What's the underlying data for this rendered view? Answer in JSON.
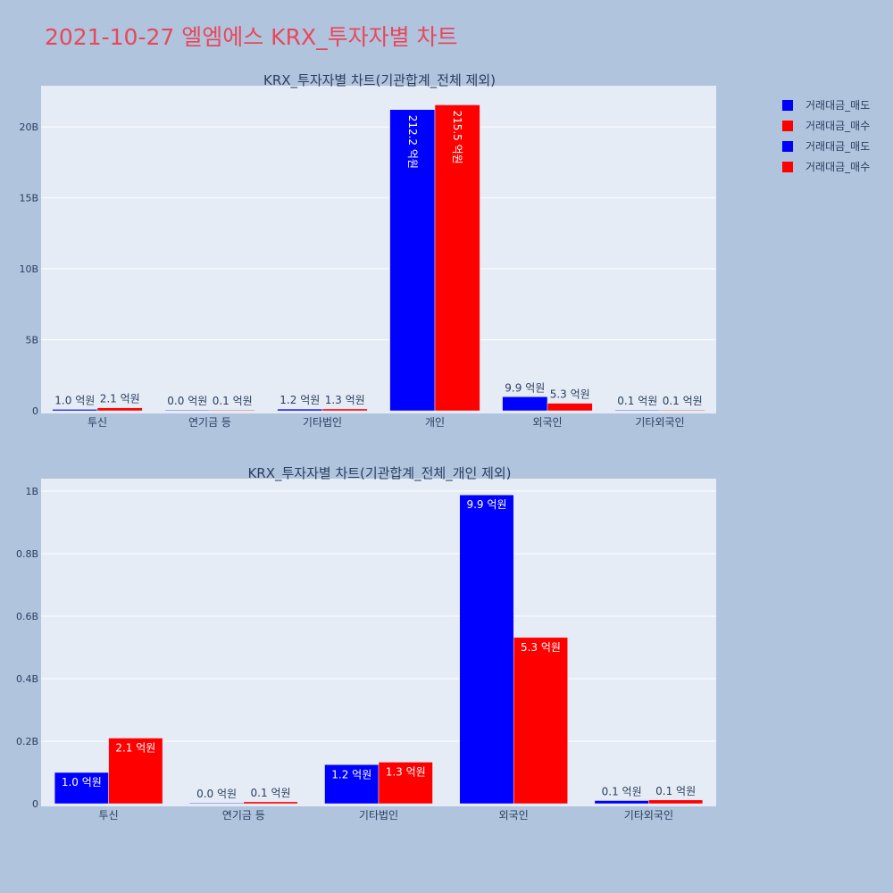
{
  "page": {
    "title": "2021-10-27 엘엠에스 KRX_투자자별 차트"
  },
  "legend": [
    {
      "label": "거래대금_매도",
      "color": "#0000ff"
    },
    {
      "label": "거래대금_매수",
      "color": "#ff0000"
    },
    {
      "label": "거래대금_매도",
      "color": "#0000ff"
    },
    {
      "label": "거래대금_매수",
      "color": "#ff0000"
    }
  ],
  "chart_data": [
    {
      "type": "bar",
      "title": "KRX_투자자별 차트(기관합계_전체 제외)",
      "categories": [
        "투신",
        "연기금 등",
        "기타법인",
        "개인",
        "외국인",
        "기타외국인"
      ],
      "series": [
        {
          "name": "거래대금_매도",
          "color": "#0000ff",
          "values": [
            100000000,
            2000000,
            120000000,
            21220000000,
            990000000,
            10000000
          ],
          "labels": [
            "1.0 억원",
            "0.0 억원",
            "1.2 억원",
            "212.2 억원",
            "9.9 억원",
            "0.1 억원"
          ]
        },
        {
          "name": "거래대금_매수",
          "color": "#ff0000",
          "values": [
            210000000,
            6000000,
            130000000,
            21550000000,
            530000000,
            12000000
          ],
          "labels": [
            "2.1 억원",
            "0.1 억원",
            "1.3 억원",
            "215.5 억원",
            "5.3 억원",
            "0.1 억원"
          ]
        }
      ],
      "ylim": [
        0,
        22900000000
      ],
      "yticks": [
        0,
        5000000000,
        10000000000,
        15000000000,
        20000000000
      ],
      "yticklabels": [
        "0",
        "5B",
        "10B",
        "15B",
        "20B"
      ],
      "grid": true
    },
    {
      "type": "bar",
      "title": "KRX_투자자별 차트(기관합계_전체_개인 제외)",
      "categories": [
        "투신",
        "연기금 등",
        "기타법인",
        "외국인",
        "기타외국인"
      ],
      "series": [
        {
          "name": "거래대금_매도",
          "color": "#0000ff",
          "values": [
            100000000,
            2000000,
            125000000,
            988000000,
            10000000
          ],
          "labels": [
            "1.0 억원",
            "0.0 억원",
            "1.2 억원",
            "9.9 억원",
            "0.1 억원"
          ]
        },
        {
          "name": "거래대금_매수",
          "color": "#ff0000",
          "values": [
            210000000,
            6000000,
            133000000,
            532000000,
            12000000
          ],
          "labels": [
            "2.1 억원",
            "0.1 억원",
            "1.3 억원",
            "5.3 억원",
            "0.1 억원"
          ]
        }
      ],
      "ylim": [
        0,
        1040000000
      ],
      "yticks": [
        0,
        200000000,
        400000000,
        600000000,
        800000000,
        1000000000
      ],
      "yticklabels": [
        "0",
        "0.2B",
        "0.4B",
        "0.6B",
        "0.8B",
        "1B"
      ],
      "grid": true
    }
  ]
}
